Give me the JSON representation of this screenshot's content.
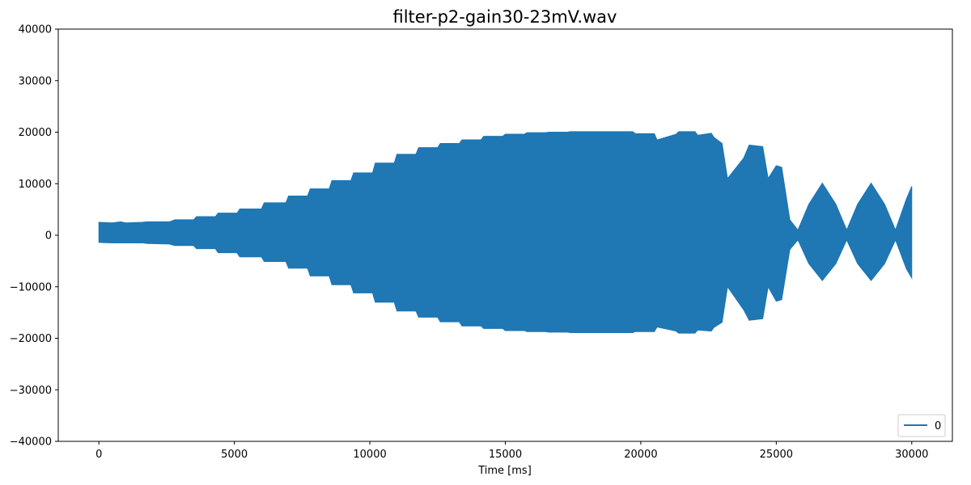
{
  "chart_data": {
    "type": "area",
    "title": "filter-p2-gain30-23mV.wav",
    "xlabel": "Time [ms]",
    "ylabel": "",
    "xlim": [
      -1500,
      31500
    ],
    "ylim": [
      -40000,
      40000
    ],
    "xticks": [
      0,
      5000,
      10000,
      15000,
      20000,
      25000,
      30000
    ],
    "yticks": [
      -40000,
      -30000,
      -20000,
      -10000,
      0,
      10000,
      20000,
      30000,
      40000
    ],
    "xtick_labels": [
      "0",
      "5000",
      "10000",
      "15000",
      "20000",
      "25000",
      "30000"
    ],
    "ytick_labels": [
      "−40000",
      "−30000",
      "−20000",
      "−10000",
      "0",
      "10000",
      "20000",
      "30000",
      "40000"
    ],
    "grid": false,
    "legend_position": "bottom-right",
    "series": [
      {
        "name": "0",
        "color": "#1f77b4",
        "envelope_x": [
          0,
          500,
          800,
          1000,
          1600,
          1800,
          2600,
          2800,
          3500,
          3600,
          4300,
          4400,
          5100,
          5200,
          6000,
          6100,
          6900,
          7000,
          7700,
          7800,
          8500,
          8600,
          9300,
          9400,
          10100,
          10200,
          10900,
          11000,
          11700,
          11800,
          12500,
          12600,
          13300,
          13400,
          14100,
          14200,
          14900,
          15000,
          15700,
          15800,
          16500,
          16600,
          17300,
          17400,
          18100,
          18200,
          18900,
          19000,
          19700,
          19800,
          20500,
          20600,
          21300,
          21400,
          22000,
          22100,
          22600,
          22700,
          23000,
          23200,
          23800,
          24000,
          24500,
          24700,
          25000,
          25200,
          25500,
          25800,
          26200,
          26700,
          27200,
          27600,
          28000,
          28500,
          29000,
          29400,
          29800,
          30000
        ],
        "envelope_upper": [
          2500,
          2400,
          2600,
          2400,
          2500,
          2600,
          2600,
          3000,
          3000,
          3600,
          3600,
          4300,
          4300,
          5100,
          5100,
          6300,
          6300,
          7600,
          7600,
          9000,
          9000,
          10600,
          10600,
          12100,
          12100,
          14000,
          14000,
          15700,
          15700,
          17000,
          17000,
          17800,
          17800,
          18500,
          18500,
          19200,
          19200,
          19600,
          19600,
          19900,
          19900,
          20000,
          20000,
          20100,
          20100,
          20100,
          20100,
          20100,
          20100,
          19700,
          19700,
          18500,
          19600,
          20100,
          20100,
          19400,
          19800,
          19000,
          17800,
          11000,
          15000,
          17500,
          17200,
          11000,
          13500,
          13200,
          3000,
          1000,
          6000,
          10100,
          6000,
          1000,
          6000,
          10100,
          6000,
          1000,
          7000,
          9500
        ],
        "envelope_lower": [
          -1400,
          -1500,
          -1500,
          -1500,
          -1500,
          -1600,
          -1700,
          -2000,
          -2000,
          -2600,
          -2600,
          -3400,
          -3400,
          -4200,
          -4200,
          -5100,
          -5100,
          -6400,
          -6400,
          -7900,
          -7900,
          -9600,
          -9600,
          -11200,
          -11200,
          -13000,
          -13000,
          -14700,
          -14700,
          -15900,
          -15900,
          -16800,
          -16800,
          -17600,
          -17600,
          -18100,
          -18100,
          -18500,
          -18500,
          -18700,
          -18700,
          -18800,
          -18800,
          -18900,
          -18900,
          -18900,
          -18900,
          -18900,
          -18900,
          -18700,
          -18700,
          -17800,
          -18600,
          -19000,
          -19000,
          -18400,
          -18600,
          -17900,
          -16900,
          -10000,
          -14500,
          -16500,
          -16200,
          -10000,
          -12800,
          -12500,
          -2800,
          -900,
          -5500,
          -8800,
          -5500,
          -900,
          -5500,
          -8800,
          -5500,
          -900,
          -6500,
          -8300
        ]
      }
    ]
  }
}
